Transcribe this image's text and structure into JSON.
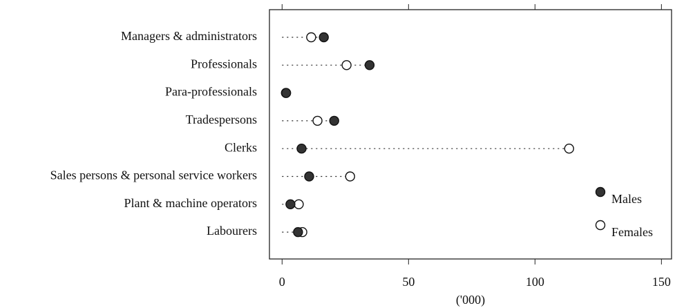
{
  "chart_data": {
    "type": "dot",
    "xlabel": "('000)",
    "categories": [
      "Managers & administrators",
      "Professionals",
      "Para-professionals",
      "Tradespersons",
      "Clerks",
      "Sales persons & personal service workers",
      "Plant & machine operators",
      "Labourers"
    ],
    "series": [
      {
        "name": "Males",
        "color": "#333333",
        "values": [
          16.5,
          34.6,
          1.6,
          20.6,
          7.7,
          10.7,
          3.3,
          6.3
        ]
      },
      {
        "name": "Females",
        "color": "#ffffff",
        "values": [
          11.5,
          25.5,
          1.5,
          14,
          113.5,
          26.9,
          6.6,
          8
        ]
      }
    ],
    "xlim": [
      -5,
      154
    ],
    "xticks": [
      0,
      50,
      100,
      150
    ],
    "legend": "right"
  }
}
